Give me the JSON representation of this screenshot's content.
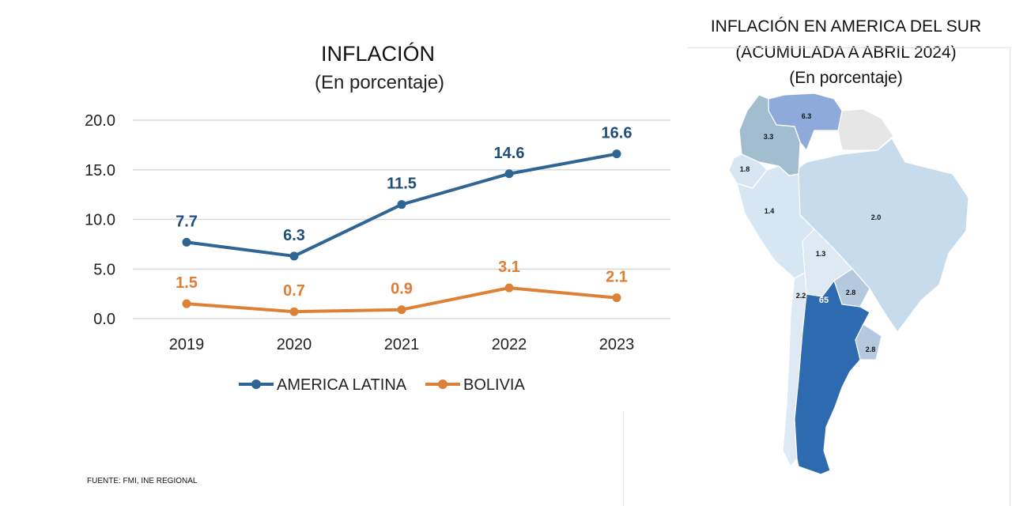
{
  "chart_data": {
    "type": "line",
    "title": "INFLACIÓN",
    "subtitle": "(En porcentaje)",
    "categories": [
      "2019",
      "2020",
      "2021",
      "2022",
      "2023"
    ],
    "yticks": [
      "20.0",
      "15.0",
      "10.0",
      "5.0",
      "0.0"
    ],
    "ylim": [
      0,
      20
    ],
    "xlabel": "",
    "ylabel": "",
    "grid": true,
    "legend_position": "bottom",
    "series": [
      {
        "name": "AMERICA LATINA",
        "color": "#2e6592",
        "label_color": "#1f4e79",
        "values": [
          7.7,
          6.3,
          11.5,
          14.6,
          16.6
        ],
        "labels": [
          "7.7",
          "6.3",
          "11.5",
          "14.6",
          "16.6"
        ]
      },
      {
        "name": "BOLIVIA",
        "color": "#dd8137",
        "label_color": "#e07d35",
        "values": [
          1.5,
          0.7,
          0.9,
          3.1,
          2.1
        ],
        "labels": [
          "1.5",
          "0.7",
          "0.9",
          "3.1",
          "2.1"
        ]
      }
    ]
  },
  "source": "FUENTE: FMI, INE REGIONAL",
  "map": {
    "title_lines": [
      "INFLACIÓN EN AMERICA DEL SUR",
      "(ACUMULADA A ABRIL 2024)",
      "(En porcentaje)"
    ],
    "regions": [
      {
        "name": "Venezuela",
        "value": "6.3",
        "color": "#8eaadb"
      },
      {
        "name": "Colombia",
        "value": "3.3",
        "color": "#a3bdd0"
      },
      {
        "name": "Ecuador",
        "value": "1.8",
        "color": "#d7e6f3"
      },
      {
        "name": "Peru",
        "value": "1.4",
        "color": "#d7e6f3"
      },
      {
        "name": "Brasil",
        "value": "2.0",
        "color": "#c6dced"
      },
      {
        "name": "Bolivia",
        "value": "1.3",
        "color": "#dfe9f4"
      },
      {
        "name": "Chile",
        "value": "2.2",
        "color": "#dfe9f4"
      },
      {
        "name": "Argentina",
        "value": "65",
        "color": "#2e6ab0"
      },
      {
        "name": "Paraguay",
        "value": "2.8",
        "color": "#b4c9de"
      },
      {
        "name": "Uruguay",
        "value": "2.8",
        "color": "#b4c9de"
      },
      {
        "name": "Guyanas",
        "value": "",
        "color": "#e6e6e6"
      }
    ]
  }
}
